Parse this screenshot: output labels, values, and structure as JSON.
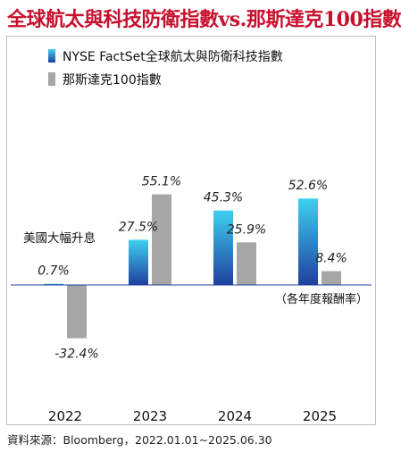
{
  "title": "全球航太與科技防衛指數vs.那斯達克100指數",
  "note_left": "美國大幅升息",
  "note_right": "（各年度報酬率）",
  "source": "資料來源：Bloomberg，2022.01.01~2025.06.30",
  "colors": {
    "title": "#c8102e",
    "series1_top": "#3fd0f0",
    "series1_bottom": "#1f3f9e",
    "series2": "#a6a6a6",
    "axis": "#1f3f9e"
  },
  "chart_data": {
    "type": "bar",
    "categories": [
      "2022",
      "2023",
      "2024",
      "2025"
    ],
    "series": [
      {
        "name": "NYSE FactSet全球航太與防衛科技指數",
        "values": [
          0.7,
          27.5,
          45.3,
          52.6
        ],
        "labels": [
          "0.7%",
          "27.5%",
          "45.3%",
          "52.6%"
        ]
      },
      {
        "name": "那斯達克100指數",
        "values": [
          -32.4,
          55.1,
          25.9,
          8.4
        ],
        "labels": [
          "-32.4%",
          "55.1%",
          "25.9%",
          "8.4%"
        ]
      }
    ],
    "ylim": [
      -40,
      60
    ],
    "legend": "top-left",
    "grid": false
  }
}
